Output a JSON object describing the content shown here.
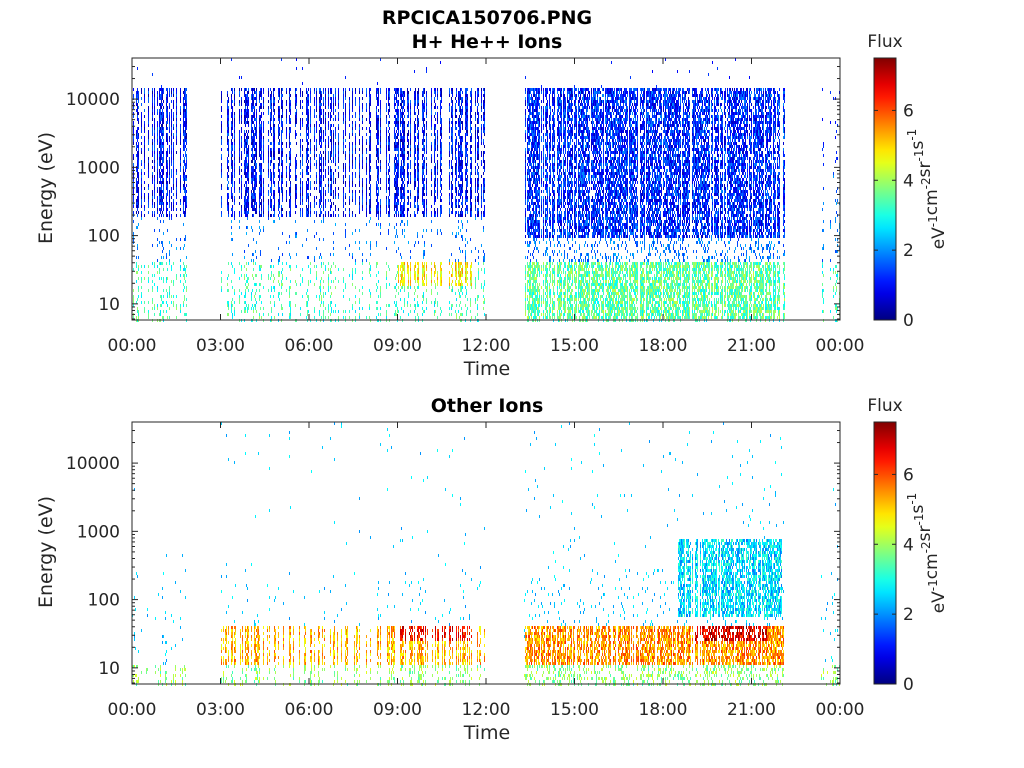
{
  "figure_title": "RPCICA150706.PNG",
  "chart_data": [
    {
      "type": "heatmap",
      "title": "H+ He++ Ions",
      "xlabel": "Time",
      "ylabel": "Energy (eV)",
      "x_ticks": [
        "00:00",
        "03:00",
        "06:00",
        "09:00",
        "12:00",
        "15:00",
        "18:00",
        "21:00",
        "00:00"
      ],
      "x_range_hours": [
        0,
        24
      ],
      "y_scale": "log",
      "y_range": [
        5.8,
        40000
      ],
      "y_ticks": [
        "10",
        "100",
        "1000",
        "10000"
      ],
      "colorbar": {
        "title": "Flux",
        "unit": "eV-1cm-2sr-1s-1",
        "range": [
          0,
          7.5
        ],
        "ticks": [
          "0",
          "2",
          "4",
          "6"
        ],
        "colormap": "jet"
      },
      "data_intervals_hours": [
        [
          0.0,
          1.85
        ],
        [
          3.0,
          11.95
        ],
        [
          13.3,
          22.15
        ],
        [
          23.35,
          24.0
        ]
      ],
      "features": [
        {
          "t_start": 9.0,
          "t_end": 11.5,
          "energy_range": [
            20,
            45
          ],
          "flux": 4.8
        },
        {
          "t_start": 13.3,
          "t_end": 22.15,
          "energy_range": [
            6,
            45
          ],
          "flux": 3.5
        },
        {
          "t_start": 13.3,
          "t_end": 22.15,
          "energy_range": [
            100,
            15000
          ],
          "flux": 1.2
        },
        {
          "t_start": 0.0,
          "t_end": 11.95,
          "energy_range": [
            200,
            15000
          ],
          "flux": 1.0
        }
      ]
    },
    {
      "type": "heatmap",
      "title": "Other Ions",
      "xlabel": "Time",
      "ylabel": "Energy (eV)",
      "x_ticks": [
        "00:00",
        "03:00",
        "06:00",
        "09:00",
        "12:00",
        "15:00",
        "18:00",
        "21:00",
        "00:00"
      ],
      "x_range_hours": [
        0,
        24
      ],
      "y_scale": "log",
      "y_range": [
        5.8,
        40000
      ],
      "y_ticks": [
        "10",
        "100",
        "1000",
        "10000"
      ],
      "colorbar": {
        "title": "Flux",
        "unit": "eV-1cm-2sr-1s-1",
        "range": [
          0,
          7.5
        ],
        "ticks": [
          "0",
          "2",
          "4",
          "6"
        ],
        "colormap": "jet"
      },
      "data_intervals_hours": [
        [
          0.0,
          1.85
        ],
        [
          3.0,
          11.95
        ],
        [
          13.3,
          22.15
        ],
        [
          23.35,
          24.0
        ]
      ],
      "features": [
        {
          "t_start": 3.0,
          "t_end": 11.95,
          "energy_range": [
            12,
            45
          ],
          "flux": 5.2
        },
        {
          "t_start": 9.0,
          "t_end": 11.5,
          "energy_range": [
            25,
            45
          ],
          "flux": 6.5
        },
        {
          "t_start": 13.3,
          "t_end": 22.15,
          "energy_range": [
            12,
            45
          ],
          "flux": 5.5
        },
        {
          "t_start": 19.0,
          "t_end": 21.5,
          "energy_range": [
            25,
            45
          ],
          "flux": 6.8
        },
        {
          "t_start": 18.5,
          "t_end": 22.0,
          "energy_range": [
            60,
            800
          ],
          "flux": 2.6
        }
      ]
    }
  ]
}
